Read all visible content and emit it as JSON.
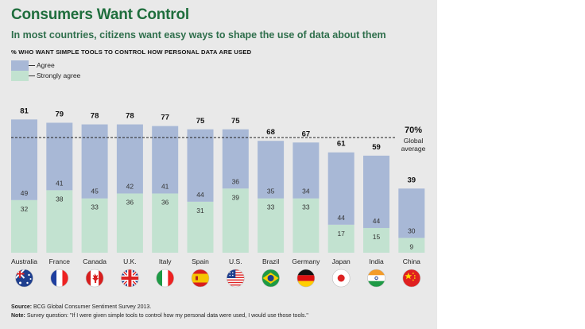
{
  "title": "Consumers Want Control",
  "subtitle": "In most countries, citizens want easy ways to shape the use of data about them",
  "chart_data": {
    "type": "bar",
    "stacked": true,
    "ylabel": "% WHO WANT SIMPLE TOOLS TO CONTROL HOW PERSONAL DATA ARE USED",
    "ylim": [
      0,
      100
    ],
    "legend": [
      "Agree",
      "Strongly agree"
    ],
    "categories": [
      "Australia",
      "France",
      "Canada",
      "U.K.",
      "Italy",
      "Spain",
      "U.S.",
      "Brazil",
      "Germany",
      "Japan",
      "India",
      "China"
    ],
    "series": [
      {
        "name": "Strongly agree",
        "values": [
          32,
          38,
          33,
          36,
          36,
          31,
          39,
          33,
          33,
          17,
          15,
          9
        ]
      },
      {
        "name": "Agree",
        "values": [
          49,
          41,
          45,
          42,
          41,
          44,
          36,
          35,
          34,
          44,
          44,
          30
        ]
      }
    ],
    "totals": [
      81,
      79,
      78,
      78,
      77,
      75,
      75,
      68,
      67,
      61,
      59,
      39
    ],
    "reference_line": {
      "value": 70,
      "label": "70%",
      "sublabel_1": "Global",
      "sublabel_2": "average"
    }
  },
  "colors": {
    "agree": "#a8b8d6",
    "strongly_agree": "#c2e2d0",
    "panel": "#e9e9e9",
    "title": "#1f6e3d"
  },
  "flag_icons": [
    "australia-flag-icon",
    "france-flag-icon",
    "canada-flag-icon",
    "uk-flag-icon",
    "italy-flag-icon",
    "spain-flag-icon",
    "us-flag-icon",
    "brazil-flag-icon",
    "germany-flag-icon",
    "japan-flag-icon",
    "india-flag-icon",
    "china-flag-icon"
  ],
  "footer": {
    "source_label": "Source:",
    "source_text": "BCG Global Consumer Sentiment Survey 2013.",
    "note_label": "Note:",
    "note_text": "Survey question: \"If I were given simple tools to control how my personal data were used, I would use those tools.\""
  }
}
